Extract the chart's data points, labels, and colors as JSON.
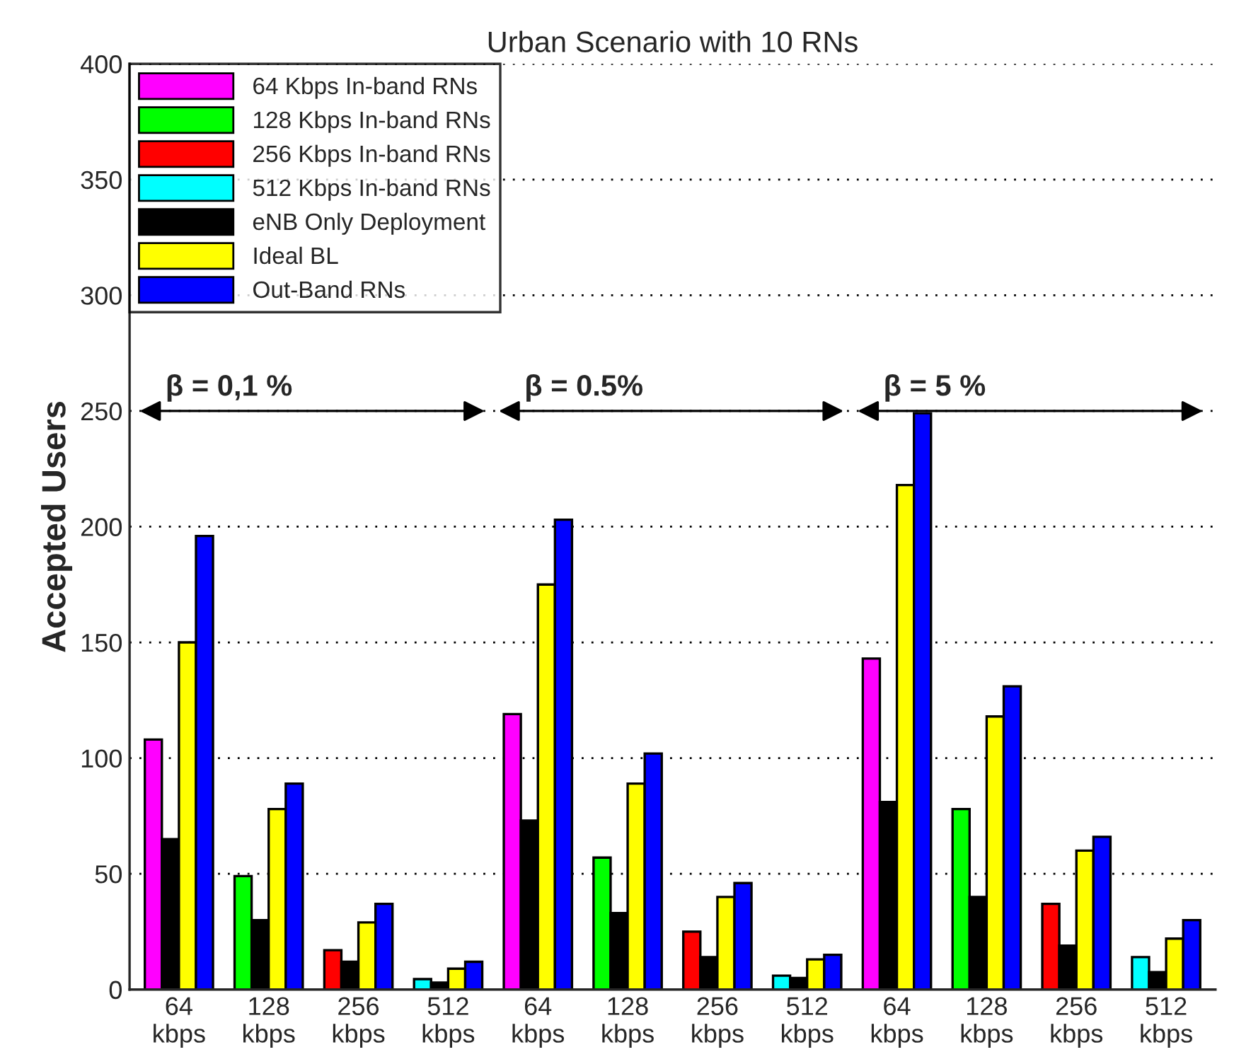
{
  "chart_data": {
    "type": "bar",
    "title": "Urban Scenario with 10 RNs",
    "ylabel": "Accepted Users",
    "categories": [
      "64\nkbps",
      "128\nkbps",
      "256\nkbps",
      "512\nkbps",
      "64\nkbps",
      "128\nkbps",
      "256\nkbps",
      "512\nkbps",
      "64\nkbps",
      "128\nkbps",
      "256\nkbps",
      "512\nkbps"
    ],
    "series": [
      {
        "name": "64 Kbps In-band RNs",
        "color": "#ff00ff",
        "values": [
          108,
          null,
          null,
          null,
          119,
          null,
          null,
          null,
          143,
          null,
          null,
          null
        ]
      },
      {
        "name": "128 Kbps In-band RNs",
        "color": "#00ff00",
        "values": [
          null,
          49,
          null,
          null,
          null,
          57,
          null,
          null,
          null,
          78,
          null,
          null
        ]
      },
      {
        "name": "256 Kbps In-band RNs",
        "color": "#ff0000",
        "values": [
          null,
          null,
          17,
          null,
          null,
          null,
          25,
          null,
          null,
          null,
          37,
          null
        ]
      },
      {
        "name": "512 Kbps In-band RNs",
        "color": "#00ffff",
        "values": [
          null,
          null,
          null,
          4.5,
          null,
          null,
          null,
          6,
          null,
          null,
          null,
          14
        ]
      },
      {
        "name": "eNB Only Deployment",
        "color": "#000000",
        "values": [
          65,
          30,
          12,
          3,
          73,
          33,
          14,
          5,
          81,
          40,
          19,
          7.5
        ]
      },
      {
        "name": "Ideal BL",
        "color": "#ffff00",
        "values": [
          150,
          78,
          29,
          9,
          175,
          89,
          40,
          13,
          218,
          118,
          60,
          22
        ]
      },
      {
        "name": "Out-Band RNs",
        "color": "#0000ff",
        "values": [
          196,
          89,
          37,
          12,
          203,
          102,
          46,
          15,
          249,
          131,
          66,
          30
        ]
      }
    ],
    "ylim": [
      0,
      400
    ],
    "yticks": [
      0,
      50,
      100,
      150,
      200,
      250,
      300,
      350,
      400
    ],
    "grid": "y",
    "legend": "top left",
    "annotations": [
      "β = 0,1 %",
      "β = 0.5%",
      "β = 5 %"
    ]
  }
}
